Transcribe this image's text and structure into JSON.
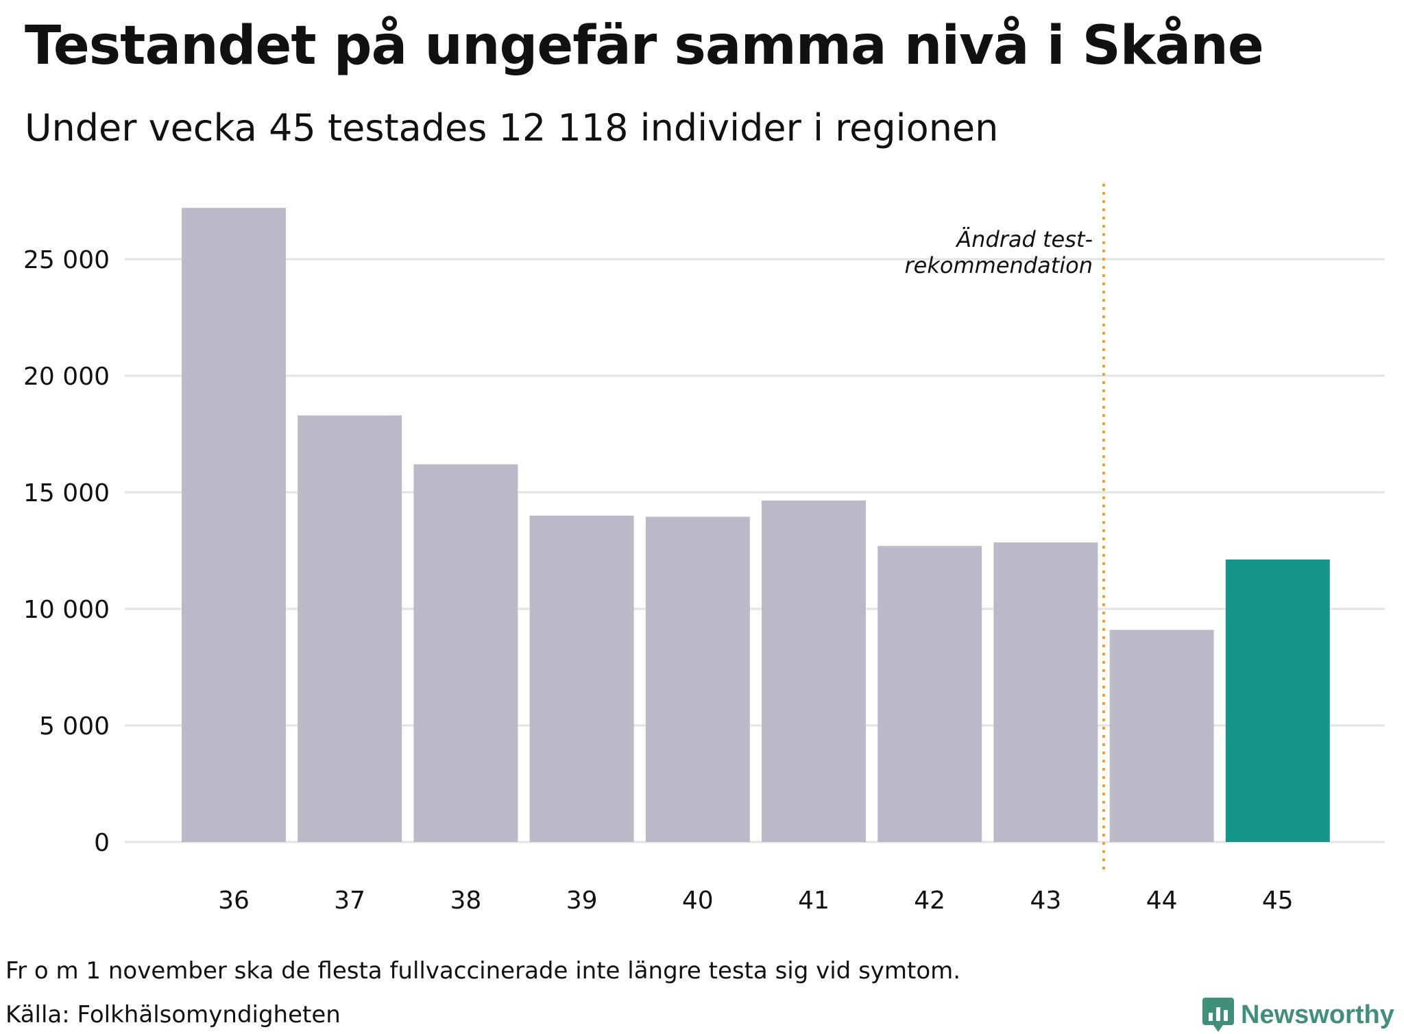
{
  "header": {
    "title": "Testandet på ungefär samma nivå i Skåne",
    "subtitle": "Under vecka 45 testades 12 118 individer i regionen"
  },
  "chart_data": {
    "type": "bar",
    "title": "Testandet på ungefär samma nivå i Skåne",
    "subtitle": "Under vecka 45 testades 12 118 individer i regionen",
    "xlabel": "",
    "ylabel": "",
    "categories": [
      "36",
      "37",
      "38",
      "39",
      "40",
      "41",
      "42",
      "43",
      "44",
      "45"
    ],
    "values": [
      27200,
      18300,
      16200,
      14000,
      13950,
      14650,
      12700,
      12850,
      9100,
      12118
    ],
    "highlight_index": 9,
    "ylim": [
      0,
      27500
    ],
    "yticks": [
      0,
      5000,
      10000,
      15000,
      20000,
      25000
    ],
    "ytick_labels": [
      "0",
      "5 000",
      "10 000",
      "15 000",
      "20 000",
      "25 000"
    ],
    "grid": true,
    "annotation": {
      "between_categories": [
        "43",
        "44"
      ],
      "lines": [
        "Ändrad test-",
        "rekommendation"
      ]
    },
    "colors": {
      "bar": "#bcbac8",
      "highlight": "#14968a",
      "grid": "#e3e3e6",
      "annotation_line": "#f0a430",
      "text": "#111111"
    }
  },
  "footer": {
    "note": "Fr o m 1 november ska de flesta fullvaccinerade inte längre testa sig vid symtom.",
    "source": "Källa: Folkhälsomyndigheten",
    "brand": "Newsworthy",
    "brand_icon": "bar-chart-speech-icon",
    "brand_color": "#3f8f7a"
  }
}
